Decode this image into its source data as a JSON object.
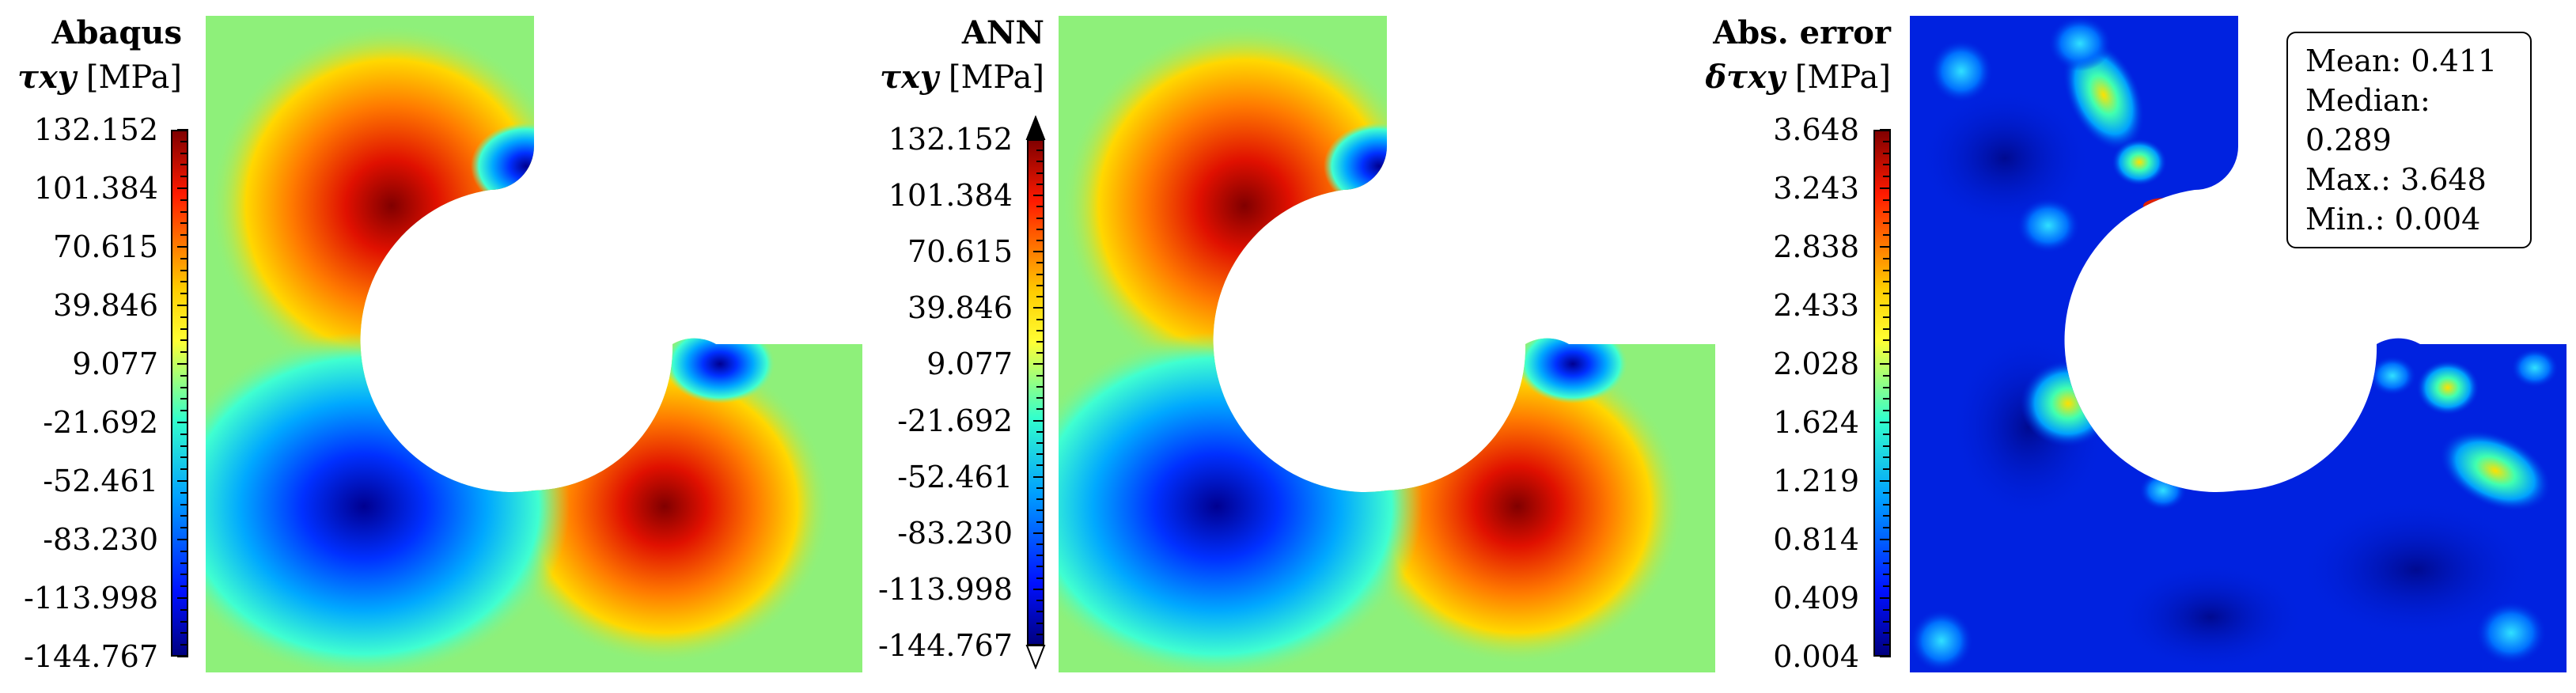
{
  "chart_data": [
    {
      "type": "heatmap",
      "title": "Abaqus",
      "quantity": "τxy",
      "unit": "[MPa]",
      "colormap": "jet",
      "colorbar_ticks": [
        "132.152",
        "101.384",
        "70.615",
        "39.846",
        "9.077",
        "-21.692",
        "-52.461",
        "-83.230",
        "-113.998",
        "-144.767"
      ],
      "range": [
        -144.767,
        132.152
      ]
    },
    {
      "type": "heatmap",
      "title": "ANN",
      "quantity": "τxy",
      "unit": "[MPa]",
      "colormap": "jet",
      "colorbar_extend": "both",
      "colorbar_ticks": [
        "132.152",
        "101.384",
        "70.615",
        "39.846",
        "9.077",
        "-21.692",
        "-52.461",
        "-83.230",
        "-113.998",
        "-144.767"
      ],
      "range": [
        -144.767,
        132.152
      ]
    },
    {
      "type": "heatmap",
      "title": "Abs. error",
      "quantity": "δτxy",
      "unit": "[MPa]",
      "colormap": "jet",
      "colorbar_ticks": [
        "3.648",
        "3.243",
        "2.838",
        "2.433",
        "2.028",
        "1.624",
        "1.219",
        "0.814",
        "0.409",
        "0.004"
      ],
      "range": [
        0.004,
        3.648
      ],
      "stats": {
        "mean": "Mean: 0.411",
        "median": "Median: 0.289",
        "max": "Max.: 3.648",
        "min": "Min.: 0.004"
      }
    }
  ],
  "colors": {
    "field_base": "#8ef07a",
    "hot": "#d40000",
    "cold": "#0018c8",
    "error_base": "#0022e0"
  }
}
